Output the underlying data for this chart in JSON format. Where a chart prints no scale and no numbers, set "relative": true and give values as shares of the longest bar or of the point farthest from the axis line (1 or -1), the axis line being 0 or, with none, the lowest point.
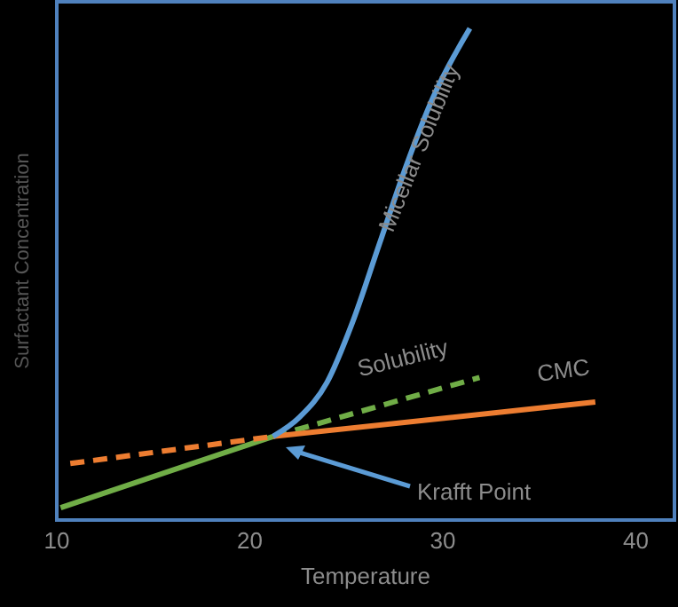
{
  "chart_data": {
    "type": "line",
    "xlabel": "Temperature",
    "ylabel": "Surfactant Concentration",
    "relative": true,
    "xlim": [
      10,
      42
    ],
    "xticks": [
      10,
      20,
      30,
      40
    ],
    "tick_labels": "x",
    "grid": false,
    "marker": "none",
    "series": [
      {
        "color": "#70ad47",
        "line_style": "solid",
        "x": [
          10.2,
          21.2
        ],
        "values": [
          0.025,
          0.17
        ]
      },
      {
        "color": "#70ad47",
        "line_style": "dashed",
        "x": [
          21.2,
          31.9
        ],
        "values": [
          0.17,
          0.29
        ]
      },
      {
        "color": "#ed7d31",
        "line_style": "dashed",
        "x": [
          10.7,
          21.2
        ],
        "values": [
          0.115,
          0.17
        ]
      },
      {
        "color": "#ed7d31",
        "line_style": "solid",
        "x": [
          21.2,
          37.9
        ],
        "values": [
          0.17,
          0.24
        ]
      },
      {
        "color": "#5b9bd5",
        "line_style": "solid",
        "x": [
          21.2,
          22.6,
          24.0,
          25.3,
          26.7,
          28.1,
          29.5,
          31.4
        ],
        "values": [
          0.17,
          0.21,
          0.28,
          0.4,
          0.56,
          0.72,
          0.86,
          1.0
        ]
      }
    ],
    "annotations": [
      "Micellar Solubility",
      "Solubility",
      "CMC",
      "Krafft Point"
    ]
  }
}
